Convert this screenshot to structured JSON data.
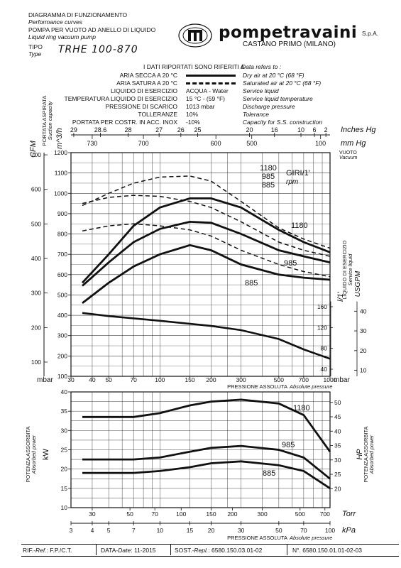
{
  "header": {
    "diagram_title": "DIAGRAMMA DI FUNZIONAMENTO",
    "diagram_title_en": "Performance curves",
    "pump_title": "POMPA PER VUOTO AD ANELLO DI LIQUIDO",
    "pump_title_en": "Liquid ring vacuum pump",
    "type_label": "TIPO",
    "type_label_en": "Type",
    "model": "TRHE 100-870",
    "company": "pompetravaini",
    "company_suffix": "S.p.A.",
    "location": "CASTANO PRIMO  (MILANO)"
  },
  "conditions": {
    "intro": "I DATI RIPORTATI SONO RIFERITI A",
    "intro_en": "Data refers to :",
    "rows": [
      {
        "label": "ARIA SECCA A 20 °C",
        "value": "",
        "en": "Dry air at 20 °C (68 °F)"
      },
      {
        "label": "ARIA SATURA A 20 °C",
        "value": "",
        "en": "Saturated air at 20 °C (68 °F)"
      },
      {
        "label": "LIQUIDO DI ESERCIZIO",
        "value": "ACQUA - Water",
        "en": "Service liquid"
      },
      {
        "label": "TEMPERATURA LIQUIDO DI ESERCIZIO",
        "value": "15 °C - (59 °F)",
        "en": "Service liquid temperature"
      },
      {
        "label": "PRESSIONE DI SCARICO",
        "value": "1013 mbar",
        "en": "Discharge pressure"
      },
      {
        "label": "TOLLERANZE",
        "value": "10%",
        "en": "Tolerance"
      },
      {
        "label": "PORTATA PER COSTR. IN ACC. INOX",
        "value": "-10%",
        "en": "Capacity for S.S. construction"
      }
    ]
  },
  "top_scales": {
    "inches_label": "Inches Hg",
    "inches_ticks": [
      "29",
      "28.6",
      "28",
      "27",
      "26",
      "25",
      "20",
      "16",
      "10",
      "6",
      "2"
    ],
    "mmhg_label": "mm Hg",
    "mmhg_ticks": [
      "730",
      "700",
      "600",
      "500",
      "100"
    ],
    "vuoto_label": "VUOTO",
    "vuoto_en": "Vacuum"
  },
  "capacity_chart": {
    "title": "PORTATA ASPIRATA",
    "title_en": "Suction capacity",
    "left_unit": "m^3/h",
    "cfm_unit": "CFM",
    "m3h_ticks": [
      "1200",
      "1100",
      "1000",
      "900",
      "800",
      "700",
      "600",
      "500",
      "400",
      "300",
      "200",
      "100"
    ],
    "cfm_ticks": [
      "700",
      "600",
      "500",
      "400",
      "300",
      "200",
      "100"
    ],
    "x_ticks": [
      "30",
      "40",
      "50",
      "70",
      "100",
      "150",
      "200",
      "300",
      "500",
      "700",
      "1000"
    ],
    "x_unit_left": "mbar",
    "x_unit_right": "mbar",
    "x_title": "PRESSIONE ASSOLUTA",
    "x_title_en": "Absolute pressure",
    "rpm_title": "GIRI/1'",
    "rpm_en": "rpm",
    "rpm_list": [
      "1180",
      "985",
      "885"
    ],
    "right_title": "LIQUIDO DI ESERCIZIO",
    "right_title_en": "Service liquid",
    "right_unit_l": "l/1'",
    "right_unit_usgpm": "USGPM",
    "lmin_ticks": [
      "160",
      "120",
      "80",
      "40"
    ],
    "usgpm_ticks": [
      "40",
      "30",
      "20",
      "10"
    ]
  },
  "power_chart": {
    "title": "POTENZA ASSORBITA",
    "title_en": "Absorbed power",
    "left_unit": "kW",
    "right_unit": "HP",
    "kw_ticks": [
      "40",
      "35",
      "30",
      "25",
      "20",
      "15",
      "10"
    ],
    "hp_ticks": [
      "50",
      "45",
      "40",
      "35",
      "30",
      "25",
      "20"
    ],
    "torr_ticks": [
      "30",
      "50",
      "70",
      "100",
      "150",
      "200",
      "300",
      "500",
      "700"
    ],
    "torr_unit": "Torr",
    "kpa_ticks": [
      "3",
      "4",
      "5",
      "7",
      "10",
      "15",
      "20",
      "30",
      "50",
      "70",
      "100"
    ],
    "kpa_unit": "kPa",
    "x_title": "PRESSIONE ASSOLUTA",
    "x_title_en": "Absolute pressure"
  },
  "footer": {
    "ref_label": "RIF.",
    "ref_en": "Ref.",
    "ref_value": "F.P./C.T.",
    "date_label": "DATA",
    "date_en": "Date",
    "date_value": "11-2015",
    "sost_label": "SOST.",
    "sost_en": "Repl.",
    "sost_value": "6580.150.03.01-02",
    "n_label": "N°.",
    "n_value": "6580.150.01.01-02-03"
  },
  "chart_data": [
    {
      "type": "line",
      "x_scale": "log",
      "xlim": [
        30,
        1000
      ],
      "ylim": [
        100,
        1200
      ],
      "x_unit": "mbar",
      "y_unit": "m3/h",
      "grid": true,
      "series": [
        {
          "name": "1180",
          "style": "solid",
          "x": [
            35,
            50,
            70,
            100,
            150,
            200,
            300,
            500,
            700,
            1000
          ],
          "values": [
            560,
            700,
            840,
            930,
            975,
            975,
            930,
            820,
            760,
            710
          ]
        },
        {
          "name": "985",
          "style": "solid",
          "x": [
            35,
            50,
            70,
            100,
            150,
            200,
            300,
            500,
            700,
            1000
          ],
          "values": [
            545,
            660,
            760,
            825,
            860,
            855,
            800,
            720,
            690,
            660
          ]
        },
        {
          "name": "885",
          "style": "solid",
          "x": [
            35,
            50,
            70,
            100,
            150,
            200,
            300,
            500,
            700,
            1000
          ],
          "values": [
            460,
            560,
            640,
            700,
            745,
            720,
            650,
            600,
            585,
            575
          ]
        },
        {
          "name": "1180",
          "style": "dashed",
          "x": [
            35,
            50,
            70,
            100,
            150,
            200,
            300,
            500,
            700,
            1000
          ],
          "values": [
            940,
            1000,
            1050,
            1080,
            1085,
            1060,
            960,
            830,
            775,
            730
          ]
        },
        {
          "name": "985",
          "style": "dashed",
          "x": [
            35,
            50,
            70,
            100,
            150,
            200,
            300,
            500,
            700,
            1000
          ],
          "values": [
            950,
            980,
            990,
            985,
            960,
            930,
            860,
            760,
            720,
            690
          ]
        },
        {
          "name": "885",
          "style": "dashed",
          "x": [
            35,
            50,
            70,
            100,
            150,
            200,
            300,
            500,
            700,
            1000
          ],
          "values": [
            815,
            840,
            850,
            840,
            820,
            790,
            720,
            650,
            615,
            590
          ]
        }
      ],
      "service_liquid": {
        "y_unit": "l/1'",
        "x": [
          35,
          50,
          100,
          200,
          300,
          500,
          700,
          1000
        ],
        "values": [
          148,
          142,
          133,
          123,
          115,
          98,
          78,
          60
        ]
      }
    },
    {
      "type": "line",
      "x_scale": "log",
      "xlim": [
        30,
        1000
      ],
      "ylim": [
        10,
        40
      ],
      "x_unit": "mbar",
      "y_unit": "kW",
      "grid": true,
      "series": [
        {
          "name": "1180",
          "x": [
            35,
            50,
            70,
            100,
            150,
            200,
            300,
            500,
            700,
            1000
          ],
          "values": [
            33.5,
            33.5,
            33.5,
            34.5,
            36.5,
            37.5,
            38,
            37,
            34,
            24.5
          ]
        },
        {
          "name": "985",
          "x": [
            35,
            50,
            70,
            100,
            150,
            200,
            300,
            500,
            700,
            1000
          ],
          "values": [
            22.5,
            22.5,
            22.5,
            23,
            24.5,
            25.5,
            26,
            25,
            23,
            17.5
          ]
        },
        {
          "name": "885",
          "x": [
            35,
            50,
            70,
            100,
            150,
            200,
            300,
            500,
            700,
            1000
          ],
          "values": [
            19,
            19,
            19,
            19.5,
            20.5,
            21.5,
            22,
            21,
            19.5,
            15
          ]
        }
      ]
    }
  ]
}
